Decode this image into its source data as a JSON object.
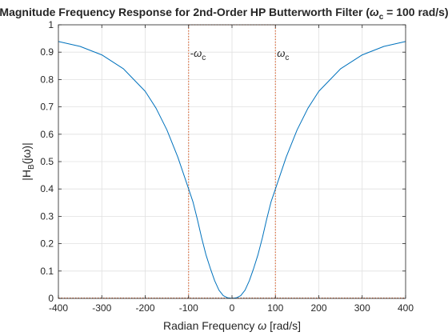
{
  "chart_data": {
    "type": "line",
    "title_text": "Magnitude Frequency Response for 2nd-Order HP Butterworth Filter (",
    "title_omega": "ω",
    "title_sub": "c",
    "title_rest": " = 100 rad/s)",
    "xlabel_main": "Radian Frequency ",
    "xlabel_omega": "ω",
    "xlabel_units": " [rad/s]",
    "ylabel_main": "|H",
    "ylabel_sub": "B",
    "ylabel_rest": "(jω)|",
    "xlim": [
      -400,
      400
    ],
    "ylim": [
      0,
      1
    ],
    "x_ticks": [
      -400,
      -300,
      -200,
      -100,
      0,
      100,
      200,
      300,
      400
    ],
    "x_tick_labels": [
      "-400",
      "-300",
      "-200",
      "-100",
      "0",
      "100",
      "200",
      "300",
      "400"
    ],
    "y_ticks": [
      0,
      0.1,
      0.2,
      0.3,
      0.4,
      0.5,
      0.6,
      0.7,
      0.8,
      0.9,
      1
    ],
    "y_tick_labels": [
      "0",
      "0.1",
      "0.2",
      "0.3",
      "0.4",
      "0.5",
      "0.6",
      "0.7",
      "0.8",
      "0.9",
      "1"
    ],
    "grid": true,
    "series": [
      {
        "color": "#0072BD",
        "x": [
          -400,
          -350,
          -300,
          -250,
          -200,
          -175,
          -150,
          -125,
          -100,
          -90,
          -80,
          -70,
          -60,
          -50,
          -40,
          -30,
          -20,
          -10,
          0,
          10,
          20,
          30,
          40,
          50,
          60,
          70,
          80,
          90,
          100,
          125,
          150,
          175,
          200,
          250,
          300,
          350,
          400
        ],
        "y": [
          0.939,
          0.921,
          0.89,
          0.839,
          0.757,
          0.695,
          0.616,
          0.517,
          0.4,
          0.353,
          0.29,
          0.222,
          0.16,
          0.11,
          0.065,
          0.03,
          0.01,
          0.002,
          0,
          0.002,
          0.01,
          0.03,
          0.065,
          0.11,
          0.16,
          0.222,
          0.29,
          0.353,
          0.4,
          0.517,
          0.616,
          0.695,
          0.757,
          0.839,
          0.89,
          0.921,
          0.939
        ]
      }
    ],
    "markers": [
      {
        "x": -100,
        "label_omega": "ω",
        "label_sub": "c",
        "label_prefix": "-",
        "color": "#D95319"
      },
      {
        "x": 100,
        "label_omega": "ω",
        "label_sub": "c",
        "label_prefix": "",
        "color": "#D95319"
      }
    ],
    "cutoff_top_y": 1,
    "colors": {
      "curve": "#0072BD",
      "markers": "#D95319",
      "grid": "#e0e0e0",
      "axis": "#262626"
    }
  }
}
